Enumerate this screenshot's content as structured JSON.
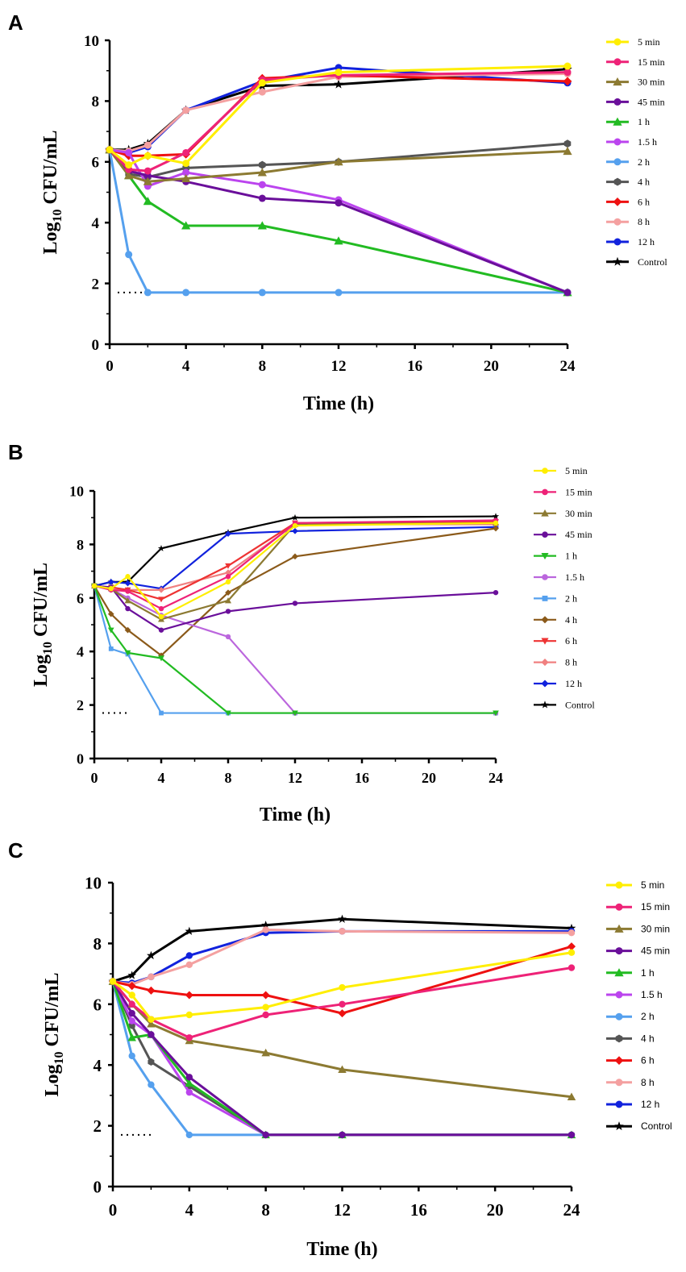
{
  "figure": {
    "panels": [
      "A",
      "B",
      "C"
    ]
  },
  "chart_data": [
    {
      "panel": "A",
      "type": "line",
      "title": "",
      "xlabel": "Time (h)",
      "ylabel_main": "Log",
      "ylabel_sub": "10",
      "ylabel_rest": " CFU/mL",
      "xlim": [
        0,
        24
      ],
      "ylim": [
        0,
        10
      ],
      "xticks": [
        "0",
        "4",
        "8",
        "12",
        "16",
        "20",
        "24"
      ],
      "yticks": [
        "0",
        "2",
        "4",
        "6",
        "8",
        "10"
      ],
      "detection_limit": 1.7,
      "series": [
        {
          "name": "5 min",
          "color": "#ffee00",
          "marker": "circle",
          "x": [
            0,
            1,
            2,
            4,
            8,
            12,
            24
          ],
          "y": [
            6.4,
            5.9,
            6.2,
            5.95,
            8.6,
            8.95,
            9.15
          ]
        },
        {
          "name": "15 min",
          "color": "#ee2277",
          "marker": "circle",
          "x": [
            0,
            1,
            2,
            4,
            8,
            12,
            24
          ],
          "y": [
            6.4,
            5.75,
            5.7,
            6.3,
            8.7,
            8.85,
            8.95
          ]
        },
        {
          "name": "30 min",
          "color": "#8c7a32",
          "marker": "triangle",
          "x": [
            0,
            1,
            2,
            4,
            8,
            12,
            24
          ],
          "y": [
            6.4,
            5.55,
            5.35,
            5.45,
            5.65,
            6.0,
            6.35
          ]
        },
        {
          "name": "45 min",
          "color": "#6a0f9a",
          "marker": "circle",
          "x": [
            0,
            1,
            2,
            4,
            8,
            12,
            24
          ],
          "y": [
            6.4,
            5.7,
            5.55,
            5.35,
            4.8,
            4.65,
            1.7
          ]
        },
        {
          "name": "1 h",
          "color": "#22bb22",
          "marker": "triangle",
          "x": [
            0,
            1,
            2,
            4,
            8,
            12,
            24
          ],
          "y": [
            6.4,
            5.55,
            4.7,
            3.9,
            3.9,
            3.4,
            1.7
          ]
        },
        {
          "name": "1.5 h",
          "color": "#bb44ee",
          "marker": "circle",
          "x": [
            0,
            1,
            2,
            4,
            8,
            12,
            24
          ],
          "y": [
            6.4,
            6.3,
            5.2,
            5.65,
            5.25,
            4.75,
            1.7
          ]
        },
        {
          "name": "2 h",
          "color": "#55a0ee",
          "marker": "circle",
          "x": [
            0,
            1,
            2,
            4,
            8,
            12,
            24
          ],
          "y": [
            6.4,
            2.95,
            1.7,
            1.7,
            1.7,
            1.7,
            1.7
          ]
        },
        {
          "name": "4 h",
          "color": "#555555",
          "marker": "hexagon",
          "x": [
            0,
            1,
            2,
            4,
            8,
            12,
            24
          ],
          "y": [
            6.4,
            5.6,
            5.5,
            5.8,
            5.9,
            6.0,
            6.6
          ]
        },
        {
          "name": "6 h",
          "color": "#ee1111",
          "marker": "diamond",
          "x": [
            0,
            1,
            2,
            4,
            8,
            12,
            24
          ],
          "y": [
            6.4,
            6.2,
            6.2,
            6.25,
            8.75,
            8.85,
            8.65
          ]
        },
        {
          "name": "8 h",
          "color": "#f4a0a0",
          "marker": "circle",
          "x": [
            0,
            1,
            2,
            4,
            8,
            12,
            24
          ],
          "y": [
            6.4,
            6.35,
            6.55,
            7.7,
            8.3,
            8.8,
            8.9
          ]
        },
        {
          "name": "12 h",
          "color": "#1122dd",
          "marker": "circle",
          "x": [
            0,
            1,
            2,
            4,
            8,
            12,
            24
          ],
          "y": [
            6.4,
            6.3,
            6.5,
            7.7,
            8.65,
            9.1,
            8.6
          ]
        },
        {
          "name": "Control",
          "color": "#000000",
          "marker": "star",
          "x": [
            0,
            1,
            2,
            4,
            8,
            12,
            24
          ],
          "y": [
            6.4,
            6.4,
            6.6,
            7.7,
            8.5,
            8.55,
            9.05
          ]
        }
      ]
    },
    {
      "panel": "B",
      "type": "line",
      "title": "",
      "xlabel": "Time (h)",
      "ylabel_main": "Log",
      "ylabel_sub": "10",
      "ylabel_rest": " CFU/mL",
      "xlim": [
        0,
        24
      ],
      "ylim": [
        0,
        10
      ],
      "xticks": [
        "0",
        "4",
        "8",
        "12",
        "16",
        "20",
        "24"
      ],
      "yticks": [
        "0",
        "2",
        "4",
        "6",
        "8",
        "10"
      ],
      "detection_limit": 1.7,
      "series": [
        {
          "name": "5 min",
          "color": "#ffee00",
          "marker": "circle",
          "x": [
            0,
            1,
            2,
            4,
            8,
            12,
            24
          ],
          "y": [
            6.45,
            6.35,
            6.8,
            5.3,
            6.6,
            8.7,
            8.8
          ]
        },
        {
          "name": "15 min",
          "color": "#ee2277",
          "marker": "circle",
          "x": [
            0,
            1,
            2,
            4,
            8,
            12,
            24
          ],
          "y": [
            6.45,
            6.3,
            6.25,
            5.6,
            6.8,
            8.8,
            8.9
          ]
        },
        {
          "name": "30 min",
          "color": "#8c7a32",
          "marker": "triangle",
          "x": [
            0,
            1,
            2,
            4,
            8,
            12,
            24
          ],
          "y": [
            6.45,
            6.35,
            5.9,
            5.2,
            5.9,
            8.75,
            8.8
          ]
        },
        {
          "name": "45 min",
          "color": "#6a0f9a",
          "marker": "circle",
          "x": [
            0,
            1,
            2,
            4,
            8,
            12,
            24
          ],
          "y": [
            6.45,
            6.4,
            5.6,
            4.8,
            5.5,
            5.8,
            6.2
          ]
        },
        {
          "name": "1 h",
          "color": "#22bb22",
          "marker": "triangle-down",
          "x": [
            0,
            1,
            2,
            4,
            8,
            12,
            24
          ],
          "y": [
            6.45,
            4.8,
            3.95,
            3.75,
            1.7,
            1.7,
            1.7
          ]
        },
        {
          "name": "1.5 h",
          "color": "#bb66dd",
          "marker": "circle",
          "x": [
            0,
            1,
            2,
            4,
            8,
            12,
            24
          ],
          "y": [
            6.45,
            6.35,
            6.0,
            5.35,
            4.55,
            1.7,
            1.7
          ]
        },
        {
          "name": "2 h",
          "color": "#55a0ee",
          "marker": "square",
          "x": [
            0,
            1,
            2,
            4,
            8,
            12,
            24
          ],
          "y": [
            6.45,
            4.1,
            3.9,
            1.7,
            1.7,
            1.7,
            1.7
          ]
        },
        {
          "name": "4 h",
          "color": "#8b5a1a",
          "marker": "diamond",
          "x": [
            0,
            1,
            2,
            4,
            8,
            12,
            24
          ],
          "y": [
            6.45,
            5.4,
            4.8,
            3.85,
            6.2,
            7.55,
            8.6
          ]
        },
        {
          "name": "6 h",
          "color": "#ee3333",
          "marker": "triangle-down",
          "x": [
            0,
            1,
            2,
            4,
            8,
            12,
            24
          ],
          "y": [
            6.45,
            6.4,
            6.3,
            5.95,
            7.2,
            8.8,
            8.85
          ]
        },
        {
          "name": "8 h",
          "color": "#f08080",
          "marker": "diamond",
          "x": [
            0,
            1,
            2,
            4,
            8,
            12,
            24
          ],
          "y": [
            6.45,
            6.3,
            6.3,
            6.3,
            6.95,
            8.75,
            8.75
          ]
        },
        {
          "name": "12 h",
          "color": "#1122dd",
          "marker": "diamond",
          "x": [
            0,
            1,
            2,
            4,
            8,
            12,
            24
          ],
          "y": [
            6.45,
            6.6,
            6.55,
            6.35,
            8.4,
            8.5,
            8.65
          ]
        },
        {
          "name": "Control",
          "color": "#000000",
          "marker": "star",
          "x": [
            0,
            1,
            2,
            4,
            8,
            12,
            24
          ],
          "y": [
            6.45,
            6.6,
            6.6,
            7.85,
            8.45,
            9.0,
            9.05
          ]
        }
      ]
    },
    {
      "panel": "C",
      "type": "line",
      "title": "",
      "xlabel": "Time (h)",
      "ylabel_main": "Log",
      "ylabel_sub": "10",
      "ylabel_rest": " CFU/mL",
      "xlim": [
        0,
        24
      ],
      "ylim": [
        0,
        10
      ],
      "xticks": [
        "0",
        "4",
        "8",
        "12",
        "16",
        "20",
        "24"
      ],
      "yticks": [
        "0",
        "2",
        "4",
        "6",
        "8",
        "10"
      ],
      "detection_limit": 1.7,
      "series": [
        {
          "name": "5 min",
          "color": "#ffee00",
          "marker": "circle",
          "x": [
            0,
            1,
            2,
            4,
            8,
            12,
            24
          ],
          "y": [
            6.75,
            6.3,
            5.5,
            5.65,
            5.9,
            6.55,
            7.7
          ]
        },
        {
          "name": "15 min",
          "color": "#ee2277",
          "marker": "circle",
          "x": [
            0,
            1,
            2,
            4,
            8,
            12,
            24
          ],
          "y": [
            6.75,
            6.0,
            5.5,
            4.9,
            5.65,
            6.0,
            7.2
          ]
        },
        {
          "name": "30 min",
          "color": "#8c7a32",
          "marker": "triangle",
          "x": [
            0,
            1,
            2,
            4,
            8,
            12,
            24
          ],
          "y": [
            6.75,
            6.0,
            5.35,
            4.8,
            4.4,
            3.85,
            2.95
          ]
        },
        {
          "name": "45 min",
          "color": "#6a0f9a",
          "marker": "circle",
          "x": [
            0,
            1,
            2,
            4,
            8,
            12,
            24
          ],
          "y": [
            6.75,
            5.7,
            5.0,
            3.6,
            1.7,
            1.7,
            1.7
          ]
        },
        {
          "name": "1 h",
          "color": "#22bb22",
          "marker": "triangle",
          "x": [
            0,
            1,
            2,
            4,
            8,
            12,
            24
          ],
          "y": [
            6.75,
            4.9,
            5.0,
            3.4,
            1.7,
            1.7,
            1.7
          ]
        },
        {
          "name": "1.5 h",
          "color": "#bb44ee",
          "marker": "circle",
          "x": [
            0,
            1,
            2,
            4,
            8,
            12,
            24
          ],
          "y": [
            6.75,
            5.45,
            5.0,
            3.1,
            1.7,
            1.7,
            1.7
          ]
        },
        {
          "name": "2 h",
          "color": "#55a0ee",
          "marker": "circle",
          "x": [
            0,
            1,
            2,
            4,
            8,
            12,
            24
          ],
          "y": [
            6.75,
            4.3,
            3.35,
            1.7,
            1.7,
            1.7,
            1.7
          ]
        },
        {
          "name": "4 h",
          "color": "#555555",
          "marker": "hexagon",
          "x": [
            0,
            1,
            2,
            4,
            8,
            12,
            24
          ],
          "y": [
            6.75,
            5.3,
            4.1,
            3.3,
            1.7,
            1.7,
            1.7
          ]
        },
        {
          "name": "6 h",
          "color": "#ee1111",
          "marker": "diamond",
          "x": [
            0,
            1,
            2,
            4,
            8,
            12,
            24
          ],
          "y": [
            6.75,
            6.6,
            6.45,
            6.3,
            6.3,
            5.7,
            7.9
          ]
        },
        {
          "name": "8 h",
          "color": "#f4a0a0",
          "marker": "circle",
          "x": [
            0,
            1,
            2,
            4,
            8,
            12,
            24
          ],
          "y": [
            6.75,
            6.65,
            6.9,
            7.3,
            8.45,
            8.4,
            8.35
          ]
        },
        {
          "name": "12 h",
          "color": "#1122dd",
          "marker": "circle",
          "x": [
            0,
            1,
            2,
            4,
            8,
            12,
            24
          ],
          "y": [
            6.75,
            6.7,
            6.9,
            7.6,
            8.35,
            8.4,
            8.4
          ]
        },
        {
          "name": "Control",
          "color": "#000000",
          "marker": "star",
          "x": [
            0,
            1,
            2,
            4,
            8,
            12,
            24
          ],
          "y": [
            6.75,
            6.95,
            7.6,
            8.4,
            8.6,
            8.8,
            8.5
          ]
        }
      ]
    }
  ]
}
